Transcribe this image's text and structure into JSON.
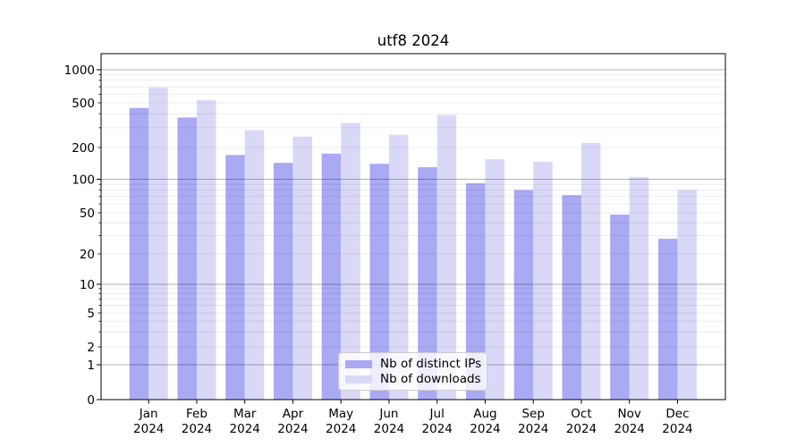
{
  "chart_data": {
    "type": "bar",
    "title": "utf8 2024",
    "categories": [
      "Jan",
      "Feb",
      "Mar",
      "Apr",
      "May",
      "Jun",
      "Jul",
      "Aug",
      "Sep",
      "Oct",
      "Nov",
      "Dec"
    ],
    "x_sublabel_year": "2024",
    "series": [
      {
        "name": "Nb of distinct IPs",
        "color": "#a9a9f4",
        "values": [
          450,
          370,
          170,
          143,
          175,
          140,
          130,
          92,
          80,
          72,
          48,
          28
        ]
      },
      {
        "name": "Nb of downloads",
        "color": "#d9d9f7",
        "values": [
          690,
          530,
          285,
          250,
          330,
          260,
          390,
          155,
          147,
          220,
          105,
          80
        ]
      }
    ],
    "xlabel": "",
    "ylabel": "",
    "yscale": "symlog",
    "ylim": [
      0,
      1400
    ],
    "y_tick_labels": [
      "0",
      "1",
      "2",
      "5",
      "10",
      "20",
      "50",
      "100",
      "200",
      "500",
      "1000"
    ],
    "y_tick_values": [
      0,
      1,
      2,
      5,
      10,
      20,
      50,
      100,
      200,
      500,
      1000
    ],
    "grid": "on",
    "legend_position": "lower center inside plot"
  },
  "legend": {
    "items": [
      {
        "label": "Nb of distinct IPs",
        "color": "#a9a9f4"
      },
      {
        "label": "Nb of downloads",
        "color": "#d9d9f7"
      }
    ]
  },
  "colors": {
    "background": "#ffffff",
    "bar_dark": "#a9a9f4",
    "bar_light": "#d9d9f7",
    "major_grid": "rgba(0,0,0,0.30)",
    "minor_grid": "rgba(0,0,0,0.09)",
    "axis": "#000000",
    "text": "#000000",
    "legend_border": "#cccccc"
  }
}
